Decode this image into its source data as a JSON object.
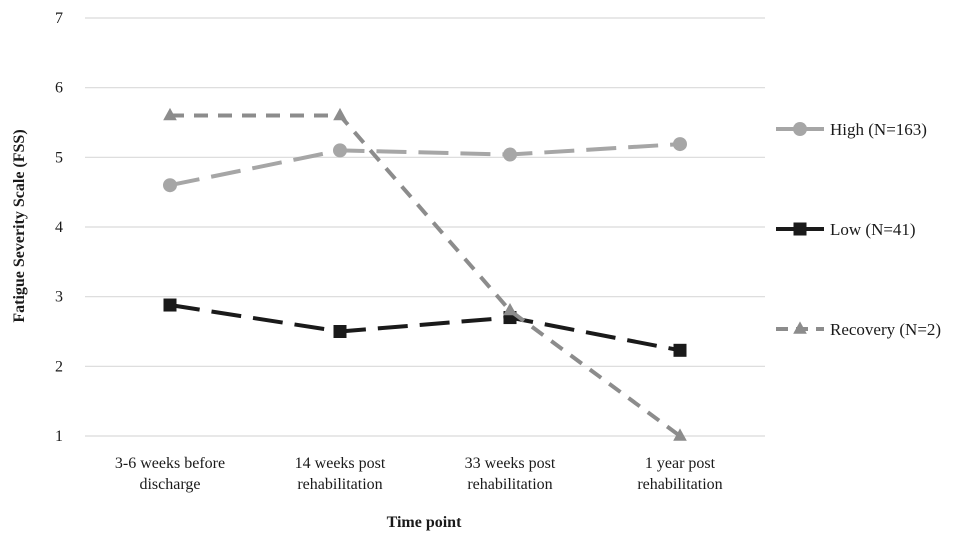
{
  "chart_data": {
    "type": "line",
    "xlabel": "Time point",
    "ylabel": "Fatigue Severity Scale (FSS)",
    "ylim": [
      1,
      7
    ],
    "yticks": [
      1,
      2,
      3,
      4,
      5,
      6,
      7
    ],
    "grid": "horizontal",
    "legend_position": "right",
    "categories": [
      [
        "3-6 weeks before",
        "discharge"
      ],
      [
        "14 weeks post",
        "rehabilitation"
      ],
      [
        "33 weeks post",
        "rehabilitation"
      ],
      [
        "1 year post",
        "rehabilitation"
      ]
    ],
    "series": [
      {
        "name": "High (N=163)",
        "values": [
          4.6,
          5.1,
          5.04,
          5.19
        ],
        "color": "#a6a6a6",
        "marker": "circle",
        "line": "long-dash"
      },
      {
        "name": "Low (N=41)",
        "values": [
          2.88,
          2.5,
          2.7,
          2.23
        ],
        "color": "#1a1a1a",
        "marker": "square",
        "line": "long-dash"
      },
      {
        "name": "Recovery (N=2)",
        "values": [
          5.6,
          5.6,
          2.8,
          1.0
        ],
        "color": "#8c8c8c",
        "marker": "triangle",
        "line": "dash"
      }
    ]
  }
}
